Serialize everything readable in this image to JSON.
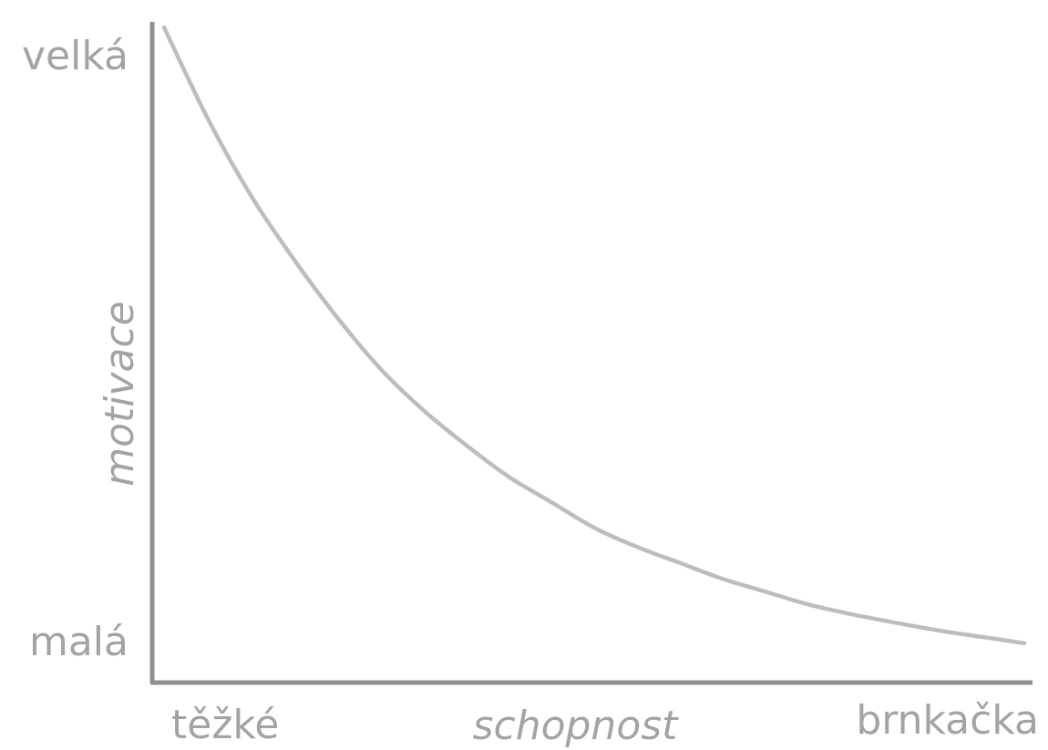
{
  "chart_data": {
    "type": "line",
    "title": "",
    "xlabel": "schopnost",
    "ylabel": "motivace",
    "x_tick_labels": {
      "start": "těžké",
      "end": "brnkačka"
    },
    "y_tick_labels": {
      "top": "velká",
      "bottom": "malá"
    },
    "xlim": [
      0,
      1
    ],
    "ylim": [
      0,
      1
    ],
    "grid": false,
    "legend": "none",
    "series": [
      {
        "x": [
          0.0,
          0.05,
          0.1,
          0.15,
          0.2,
          0.25,
          0.3,
          0.35,
          0.4,
          0.45,
          0.5,
          0.55,
          0.6,
          0.65,
          0.7,
          0.75,
          0.8,
          0.85,
          0.9,
          0.95,
          1.0
        ],
        "y": [
          1.0,
          0.86,
          0.74,
          0.64,
          0.55,
          0.47,
          0.405,
          0.35,
          0.3,
          0.26,
          0.22,
          0.19,
          0.165,
          0.14,
          0.12,
          0.1,
          0.085,
          0.072,
          0.06,
          0.05,
          0.04
        ]
      }
    ],
    "colors": {
      "axis": "#8f8f8f",
      "curve": "#bdbdbd",
      "text": "#a3a3a3"
    }
  }
}
